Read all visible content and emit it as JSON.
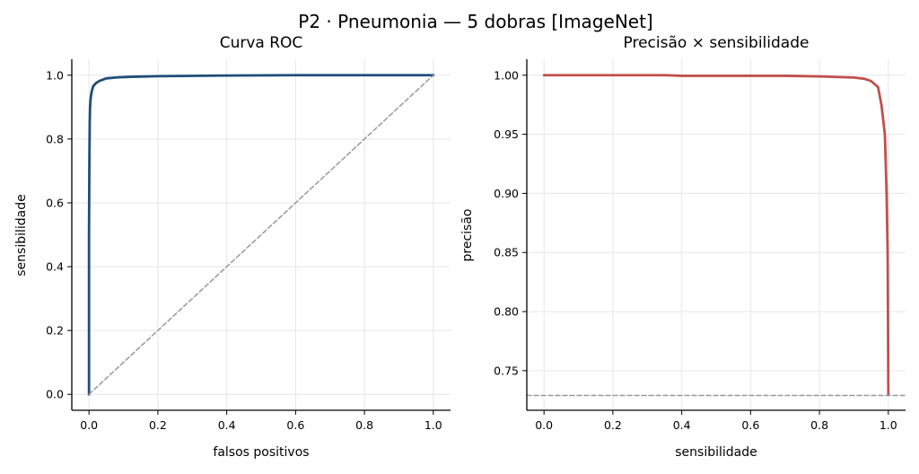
{
  "figure": {
    "title": "P2 · Pneumonia — 5 dobras [ImageNet]"
  },
  "chart_data": [
    {
      "type": "line",
      "title": "Curva ROC",
      "xlabel": "falsos positivos",
      "ylabel": "sensibilidade",
      "xlim": [
        -0.05,
        1.05
      ],
      "ylim": [
        -0.05,
        1.05
      ],
      "xticks": [
        0.0,
        0.2,
        0.4,
        0.6,
        0.8,
        1.0
      ],
      "yticks": [
        0.0,
        0.2,
        0.4,
        0.6,
        0.8,
        1.0
      ],
      "xtick_labels": [
        "0.0",
        "0.2",
        "0.4",
        "0.6",
        "0.8",
        "1.0"
      ],
      "ytick_labels": [
        "0.0",
        "0.2",
        "0.4",
        "0.6",
        "0.8",
        "1.0"
      ],
      "grid": true,
      "series": [
        {
          "color": "#1f4e79",
          "style": "solid",
          "x": [
            0.0,
            0.0,
            0.001,
            0.002,
            0.003,
            0.005,
            0.008,
            0.012,
            0.02,
            0.03,
            0.05,
            0.08,
            0.12,
            0.2,
            0.3,
            0.4,
            0.6,
            0.8,
            1.0
          ],
          "y": [
            0.0,
            0.5,
            0.72,
            0.85,
            0.9,
            0.93,
            0.95,
            0.965,
            0.975,
            0.982,
            0.99,
            0.993,
            0.995,
            0.997,
            0.998,
            0.999,
            1.0,
            1.0,
            1.0
          ]
        },
        {
          "color": "#999999",
          "style": "dashed",
          "x": [
            0.0,
            1.0
          ],
          "y": [
            0.0,
            1.0
          ]
        }
      ]
    },
    {
      "type": "line",
      "title": "Precisão × sensibilidade",
      "xlabel": "sensibilidade",
      "ylabel": "precisão",
      "xlim": [
        -0.05,
        1.05
      ],
      "ylim": [
        0.7165,
        1.0135
      ],
      "xticks": [
        0.0,
        0.2,
        0.4,
        0.6,
        0.8,
        1.0
      ],
      "yticks": [
        0.75,
        0.8,
        0.85,
        0.9,
        0.95,
        1.0
      ],
      "xtick_labels": [
        "0.0",
        "0.2",
        "0.4",
        "0.6",
        "0.8",
        "1.0"
      ],
      "ytick_labels": [
        "0.75",
        "0.80",
        "0.85",
        "0.90",
        "0.95",
        "1.00"
      ],
      "grid": true,
      "series": [
        {
          "color": "#c0504d",
          "style": "solid",
          "x": [
            0.0,
            0.1,
            0.2,
            0.3,
            0.35,
            0.4,
            0.5,
            0.6,
            0.7,
            0.8,
            0.85,
            0.9,
            0.93,
            0.95,
            0.97,
            0.98,
            0.99,
            0.995,
            0.998,
            0.999,
            1.0
          ],
          "y": [
            1.0,
            1.0,
            1.0,
            1.0,
            1.0,
            0.9995,
            0.9995,
            0.9995,
            0.9995,
            0.999,
            0.9985,
            0.998,
            0.997,
            0.995,
            0.99,
            0.975,
            0.95,
            0.9,
            0.85,
            0.8,
            0.73
          ]
        },
        {
          "color": "#999999",
          "style": "dashed",
          "x": [
            -0.05,
            1.05
          ],
          "y": [
            0.729,
            0.729
          ]
        }
      ]
    }
  ]
}
